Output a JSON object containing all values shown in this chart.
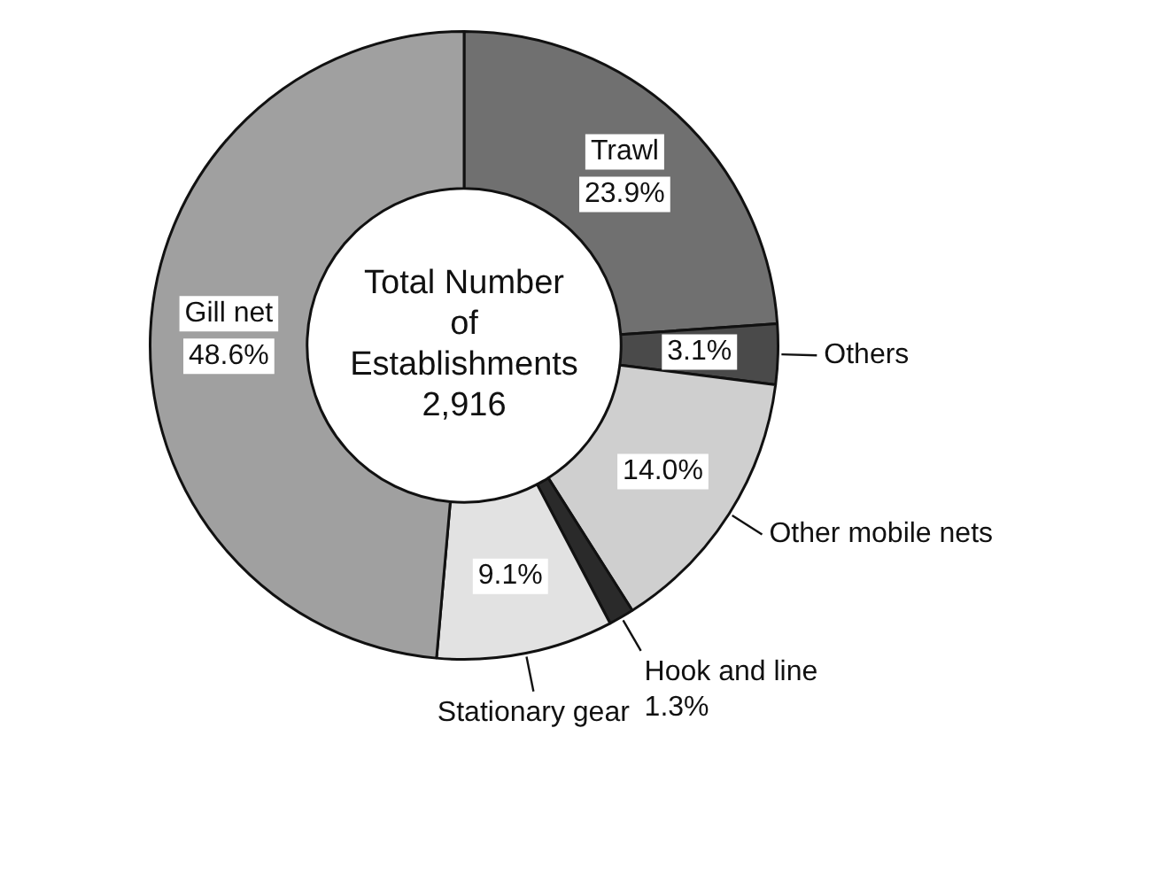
{
  "chart_data": {
    "type": "donut",
    "categories": [
      "Trawl",
      "Others",
      "Other mobile nets",
      "Hook and line",
      "Stationary gear",
      "Gill net"
    ],
    "values": [
      23.9,
      3.1,
      14.0,
      1.3,
      9.1,
      48.6
    ],
    "value_labels": [
      "23.9%",
      "3.1%",
      "14.0%",
      "1.3%",
      "9.1%",
      "48.6%"
    ],
    "colors": [
      "#707070",
      "#4a4a4a",
      "#cfcfcf",
      "#2a2a2a",
      "#e2e2e2",
      "#a0a0a0"
    ],
    "annotations": [
      "Total Number of Establishments",
      "2,916"
    ],
    "legend": false
  }
}
